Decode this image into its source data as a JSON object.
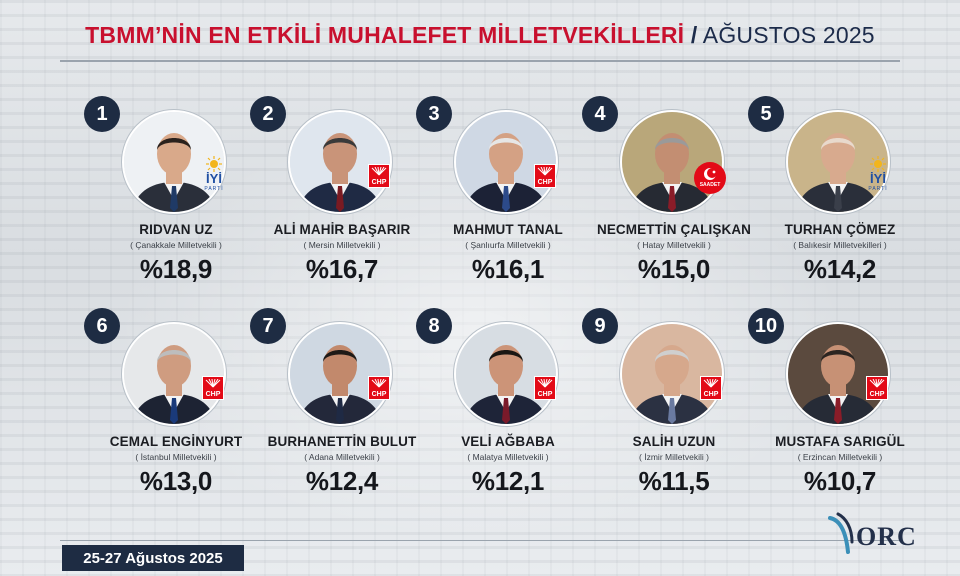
{
  "title": {
    "main": "TBMM’NİN EN ETKİLİ MUHALEFET MİLLETVEKİLLERİ",
    "separator": "/",
    "month": "AĞUSTOS 2025"
  },
  "colors": {
    "accent_red": "#c8102e",
    "navy": "#1e2c43",
    "chp_red": "#e30a17",
    "iyi_blue": "#1f4fa3"
  },
  "deputies": [
    {
      "rank": "1",
      "name": "RIDVAN UZ",
      "district": "( Çanakkale Milletvekili )",
      "pct": "%18,9",
      "party": "iyi",
      "party_label": "İYİ",
      "party_sub": "PARTİ"
    },
    {
      "rank": "2",
      "name": "ALİ MAHİR BAŞARIR",
      "district": "( Mersin Milletvekili )",
      "pct": "%16,7",
      "party": "chp",
      "party_label": "CHP"
    },
    {
      "rank": "3",
      "name": "MAHMUT TANAL",
      "district": "( Şanlıurfa Milletvekili )",
      "pct": "%16,1",
      "party": "chp",
      "party_label": "CHP"
    },
    {
      "rank": "4",
      "name": "NECMETTİN ÇALIŞKAN",
      "district": "( Hatay Milletvekili )",
      "pct": "%15,0",
      "party": "saadet",
      "party_label": "SAADET"
    },
    {
      "rank": "5",
      "name": "TURHAN ÇÖMEZ",
      "district": "( Balıkesir Milletvekilleri )",
      "pct": "%14,2",
      "party": "iyi",
      "party_label": "İYİ",
      "party_sub": "PARTİ"
    },
    {
      "rank": "6",
      "name": "CEMAL ENGİNYURT",
      "district": "( İstanbul Milletvekili )",
      "pct": "%13,0",
      "party": "chp",
      "party_label": "CHP"
    },
    {
      "rank": "7",
      "name": "BURHANETTİN BULUT",
      "district": "( Adana Milletvekili )",
      "pct": "%12,4",
      "party": "chp",
      "party_label": "CHP"
    },
    {
      "rank": "8",
      "name": "VELİ AĞBABA",
      "district": "( Malatya Milletvekili )",
      "pct": "%12,1",
      "party": "chp",
      "party_label": "CHP"
    },
    {
      "rank": "9",
      "name": "SALİH UZUN",
      "district": "( İzmir Milletvekili )",
      "pct": "%11,5",
      "party": "chp",
      "party_label": "CHP"
    },
    {
      "rank": "10",
      "name": "MUSTAFA SARIGÜL",
      "district": "( Erzincan Milletvekili )",
      "pct": "%10,7",
      "party": "chp",
      "party_label": "CHP"
    }
  ],
  "footer": {
    "date": "25-27 Ağustos 2025",
    "logo": "ORC"
  }
}
